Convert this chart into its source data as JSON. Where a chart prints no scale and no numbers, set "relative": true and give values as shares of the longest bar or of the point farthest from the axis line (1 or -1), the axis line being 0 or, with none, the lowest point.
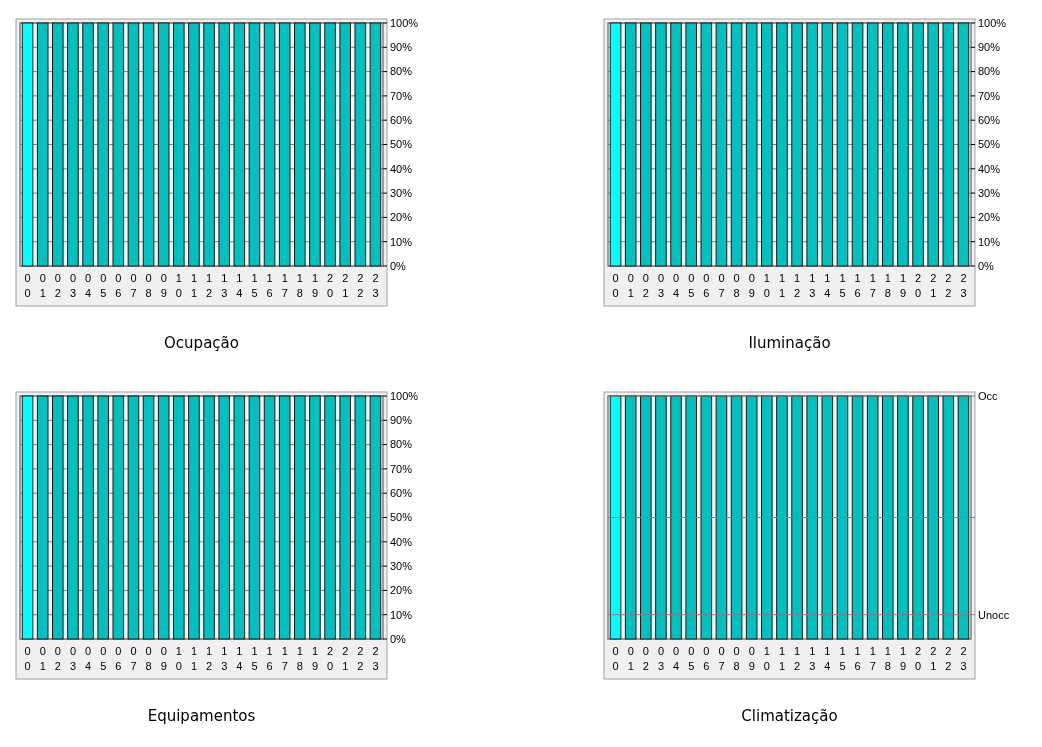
{
  "chart_data": [
    {
      "type": "bar",
      "title": "Ocupação",
      "categories": [
        "00",
        "01",
        "02",
        "03",
        "04",
        "05",
        "06",
        "07",
        "08",
        "09",
        "10",
        "11",
        "12",
        "13",
        "14",
        "15",
        "16",
        "17",
        "18",
        "19",
        "20",
        "21",
        "22",
        "23"
      ],
      "values": [
        100,
        100,
        100,
        100,
        100,
        100,
        100,
        100,
        100,
        100,
        100,
        100,
        100,
        100,
        100,
        100,
        100,
        100,
        100,
        100,
        100,
        100,
        100,
        100
      ],
      "colors": [
        "#00ffff",
        "#00c0c0",
        "#00c0c0",
        "#00c0c0",
        "#00c0c0",
        "#00c0c0",
        "#00c0c0",
        "#00c0c0",
        "#00c0c0",
        "#00c0c0",
        "#00c0c0",
        "#00c0c0",
        "#00c0c0",
        "#00c0c0",
        "#00c0c0",
        "#00c0c0",
        "#00c0c0",
        "#00c0c0",
        "#00c0c0",
        "#00c0c0",
        "#00c0c0",
        "#00c0c0",
        "#00c0c0",
        "#00c0c0"
      ],
      "ylim": [
        0,
        100
      ],
      "yticks": [
        {
          "value": 0,
          "label": "0%"
        },
        {
          "value": 10,
          "label": "10%"
        },
        {
          "value": 20,
          "label": "20%"
        },
        {
          "value": 30,
          "label": "30%"
        },
        {
          "value": 40,
          "label": "40%"
        },
        {
          "value": 50,
          "label": "50%"
        },
        {
          "value": 60,
          "label": "60%"
        },
        {
          "value": 70,
          "label": "70%"
        },
        {
          "value": 80,
          "label": "80%"
        },
        {
          "value": 90,
          "label": "90%"
        },
        {
          "value": 100,
          "label": "100%"
        }
      ],
      "grid": "y"
    },
    {
      "type": "bar",
      "title": "Iluminação",
      "categories": [
        "00",
        "01",
        "02",
        "03",
        "04",
        "05",
        "06",
        "07",
        "08",
        "09",
        "10",
        "11",
        "12",
        "13",
        "14",
        "15",
        "16",
        "17",
        "18",
        "19",
        "20",
        "21",
        "22",
        "23"
      ],
      "values": [
        100,
        100,
        100,
        100,
        100,
        100,
        100,
        100,
        100,
        100,
        100,
        100,
        100,
        100,
        100,
        100,
        100,
        100,
        100,
        100,
        100,
        100,
        100,
        100
      ],
      "colors": [
        "#00ffff",
        "#00c0c0",
        "#00c0c0",
        "#00c0c0",
        "#00c0c0",
        "#00c0c0",
        "#00c0c0",
        "#00c0c0",
        "#00c0c0",
        "#00c0c0",
        "#00c0c0",
        "#00c0c0",
        "#00c0c0",
        "#00c0c0",
        "#00c0c0",
        "#00c0c0",
        "#00c0c0",
        "#00c0c0",
        "#00c0c0",
        "#00c0c0",
        "#00c0c0",
        "#00c0c0",
        "#00c0c0",
        "#00c0c0"
      ],
      "ylim": [
        0,
        100
      ],
      "yticks": [
        {
          "value": 0,
          "label": "0%"
        },
        {
          "value": 10,
          "label": "10%"
        },
        {
          "value": 20,
          "label": "20%"
        },
        {
          "value": 30,
          "label": "30%"
        },
        {
          "value": 40,
          "label": "40%"
        },
        {
          "value": 50,
          "label": "50%"
        },
        {
          "value": 60,
          "label": "60%"
        },
        {
          "value": 70,
          "label": "70%"
        },
        {
          "value": 80,
          "label": "80%"
        },
        {
          "value": 90,
          "label": "90%"
        },
        {
          "value": 100,
          "label": "100%"
        }
      ],
      "grid": "y"
    },
    {
      "type": "bar",
      "title": "Equipamentos",
      "categories": [
        "00",
        "01",
        "02",
        "03",
        "04",
        "05",
        "06",
        "07",
        "08",
        "09",
        "10",
        "11",
        "12",
        "13",
        "14",
        "15",
        "16",
        "17",
        "18",
        "19",
        "20",
        "21",
        "22",
        "23"
      ],
      "values": [
        100,
        100,
        100,
        100,
        100,
        100,
        100,
        100,
        100,
        100,
        100,
        100,
        100,
        100,
        100,
        100,
        100,
        100,
        100,
        100,
        100,
        100,
        100,
        100
      ],
      "colors": [
        "#00ffff",
        "#00c0c0",
        "#00c0c0",
        "#00c0c0",
        "#00c0c0",
        "#00c0c0",
        "#00c0c0",
        "#00c0c0",
        "#00c0c0",
        "#00c0c0",
        "#00c0c0",
        "#00c0c0",
        "#00c0c0",
        "#00c0c0",
        "#00c0c0",
        "#00c0c0",
        "#00c0c0",
        "#00c0c0",
        "#00c0c0",
        "#00c0c0",
        "#00c0c0",
        "#00c0c0",
        "#00c0c0",
        "#00c0c0"
      ],
      "ylim": [
        0,
        100
      ],
      "yticks": [
        {
          "value": 0,
          "label": "0%"
        },
        {
          "value": 10,
          "label": "10%"
        },
        {
          "value": 20,
          "label": "20%"
        },
        {
          "value": 30,
          "label": "30%"
        },
        {
          "value": 40,
          "label": "40%"
        },
        {
          "value": 50,
          "label": "50%"
        },
        {
          "value": 60,
          "label": "60%"
        },
        {
          "value": 70,
          "label": "70%"
        },
        {
          "value": 80,
          "label": "80%"
        },
        {
          "value": 90,
          "label": "90%"
        },
        {
          "value": 100,
          "label": "100%"
        }
      ],
      "grid": "y"
    },
    {
      "type": "bar",
      "title": "Climatização",
      "categories": [
        "00",
        "01",
        "02",
        "03",
        "04",
        "05",
        "06",
        "07",
        "08",
        "09",
        "10",
        "11",
        "12",
        "13",
        "14",
        "15",
        "16",
        "17",
        "18",
        "19",
        "20",
        "21",
        "22",
        "23"
      ],
      "values": [
        1,
        1,
        1,
        1,
        1,
        1,
        1,
        1,
        1,
        1,
        1,
        1,
        1,
        1,
        1,
        1,
        1,
        1,
        1,
        1,
        1,
        1,
        1,
        1
      ],
      "colors": [
        "#00ffff",
        "#00c0c0",
        "#00c0c0",
        "#00c0c0",
        "#00c0c0",
        "#00c0c0",
        "#00c0c0",
        "#00c0c0",
        "#00c0c0",
        "#00c0c0",
        "#00c0c0",
        "#00c0c0",
        "#00c0c0",
        "#00c0c0",
        "#00c0c0",
        "#00c0c0",
        "#00c0c0",
        "#00c0c0",
        "#00c0c0",
        "#00c0c0",
        "#00c0c0",
        "#00c0c0",
        "#00c0c0",
        "#00c0c0"
      ],
      "relative": true,
      "ref_lines": [
        {
          "axis": "y",
          "value": 0.1,
          "label": "Unocc",
          "color": "#808080"
        },
        {
          "axis": "y",
          "value": 0.5,
          "label": null,
          "color": "#808080"
        },
        {
          "axis": "y",
          "value": 1,
          "label": "Occ",
          "color": "#808080"
        }
      ]
    }
  ]
}
